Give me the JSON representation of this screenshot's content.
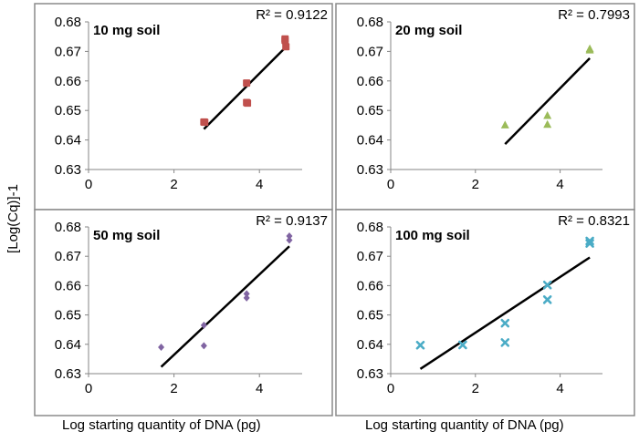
{
  "figure": {
    "y_axis_label": "[Log(Cq)]-1",
    "x_axis_labels": [
      "Log starting quantity of DNA (pg)",
      "Log starting quantity of DNA (pg)"
    ]
  },
  "chart_data": [
    {
      "type": "scatter",
      "title": "10 mg soil",
      "r2_label": "R² = 0.9122",
      "xlabel": "Log starting quantity of DNA (pg)",
      "ylabel": "[Log(Cq)]-1",
      "xlim": [
        0,
        5
      ],
      "ylim": [
        0.63,
        0.68
      ],
      "xticks": [
        "0",
        "2",
        "4"
      ],
      "yticks": [
        "0.63",
        "0.64",
        "0.65",
        "0.66",
        "0.67",
        "0.68"
      ],
      "marker": "square",
      "color": "#c0504d",
      "points": [
        [
          2.7,
          0.6461
        ],
        [
          2.72,
          0.646
        ],
        [
          3.7,
          0.6593
        ],
        [
          3.7,
          0.6527
        ],
        [
          3.72,
          0.6525
        ],
        [
          4.6,
          0.6742
        ],
        [
          4.6,
          0.6737
        ],
        [
          4.62,
          0.6716
        ]
      ],
      "trendline": [
        [
          2.7,
          0.6437
        ],
        [
          4.6,
          0.6712
        ]
      ],
      "grid": false
    },
    {
      "type": "scatter",
      "title": "20 mg soil",
      "r2_label": "R² = 0.7993",
      "xlabel": "Log starting quantity of DNA (pg)",
      "ylabel": "[Log(Cq)]-1",
      "xlim": [
        0,
        5
      ],
      "ylim": [
        0.63,
        0.68
      ],
      "xticks": [
        "0",
        "2",
        "4"
      ],
      "yticks": [
        "0.63",
        "0.64",
        "0.65",
        "0.66",
        "0.67",
        "0.68"
      ],
      "marker": "triangle",
      "color": "#9bbb59",
      "points": [
        [
          2.7,
          0.645
        ],
        [
          3.7,
          0.6482
        ],
        [
          3.7,
          0.6452
        ],
        [
          4.7,
          0.6708
        ],
        [
          4.7,
          0.6704
        ]
      ],
      "trendline": [
        [
          2.7,
          0.6386
        ],
        [
          4.7,
          0.6677
        ]
      ],
      "grid": false
    },
    {
      "type": "scatter",
      "title": "50 mg soil",
      "r2_label": "R² = 0.9137",
      "xlabel": "Log starting quantity of DNA (pg)",
      "ylabel": "[Log(Cq)]-1",
      "xlim": [
        0,
        5
      ],
      "ylim": [
        0.63,
        0.68
      ],
      "xticks": [
        "0",
        "2",
        "4"
      ],
      "yticks": [
        "0.63",
        "0.64",
        "0.65",
        "0.66",
        "0.67",
        "0.68"
      ],
      "marker": "diamond",
      "color": "#8064a2",
      "points": [
        [
          1.7,
          0.639
        ],
        [
          2.7,
          0.6465
        ],
        [
          2.7,
          0.6395
        ],
        [
          3.7,
          0.6572
        ],
        [
          3.7,
          0.6558
        ],
        [
          4.7,
          0.6769
        ],
        [
          4.7,
          0.6755
        ]
      ],
      "trendline": [
        [
          1.7,
          0.6323
        ],
        [
          4.7,
          0.6734
        ]
      ],
      "grid": false
    },
    {
      "type": "scatter",
      "title": "100 mg soil",
      "r2_label": "R² = 0.8321",
      "xlabel": "Log starting quantity of DNA (pg)",
      "ylabel": "[Log(Cq)]-1",
      "xlim": [
        0,
        5
      ],
      "ylim": [
        0.63,
        0.68
      ],
      "xticks": [
        "0",
        "2",
        "4"
      ],
      "yticks": [
        "0.63",
        "0.64",
        "0.65",
        "0.66",
        "0.67",
        "0.68"
      ],
      "marker": "x",
      "color": "#4bacc6",
      "points": [
        [
          0.7,
          0.6397
        ],
        [
          1.7,
          0.6398
        ],
        [
          2.7,
          0.6472
        ],
        [
          2.7,
          0.6406
        ],
        [
          3.7,
          0.6602
        ],
        [
          3.7,
          0.6552
        ],
        [
          4.7,
          0.6752
        ],
        [
          4.7,
          0.6744
        ]
      ],
      "trendline": [
        [
          0.7,
          0.6316
        ],
        [
          4.7,
          0.6696
        ]
      ],
      "grid": false
    }
  ]
}
